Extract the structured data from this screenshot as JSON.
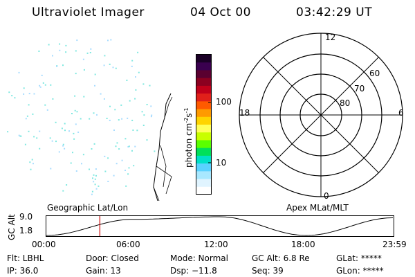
{
  "header": {
    "title": "Ultraviolet Imager",
    "date": "04 Oct 00",
    "time": "03:42:29 UT"
  },
  "colorbar": {
    "label": "photon cm⁻²s⁻¹",
    "label_main": "photon cm",
    "label_exp1": "-2",
    "label_mid": "s",
    "label_exp2": "-1",
    "ticks": [
      "100",
      "10"
    ],
    "colors": [
      "#1a0026",
      "#3a004f",
      "#5a0030",
      "#8b0020",
      "#c0001a",
      "#e0201a",
      "#ff5a00",
      "#ff9a00",
      "#ffd400",
      "#ffff5a",
      "#c8ff00",
      "#5aff00",
      "#00e05a",
      "#00e0c8",
      "#5ad2ff",
      "#a8e8ff",
      "#e0f4ff",
      "#ffffff"
    ]
  },
  "polar": {
    "mlt_labels": {
      "top": "12",
      "left": "18",
      "right": "6",
      "bottom": "0"
    },
    "lat_labels": [
      "60",
      "70",
      "80"
    ]
  },
  "timeline": {
    "left_label": "Geographic Lat/Lon",
    "right_label": "Apex MLat/MLT",
    "y_axis_label": "GC Alt",
    "y_ticks": [
      "9.0",
      "1.8"
    ],
    "x_ticks": [
      "00:00",
      "06:00",
      "12:00",
      "18:00",
      "23:59"
    ],
    "marker_color": "#cc0000"
  },
  "status": {
    "row1": {
      "flt": "Flt: LBHL",
      "door": "Door: Closed",
      "mode": "Mode: Normal",
      "gc_alt": "GC Alt: 6.8 Re",
      "glat": "GLat: *****"
    },
    "row2": {
      "ip": "IP: 36.0",
      "gain": "Gain: 13",
      "dsp": "Dsp:  −11.8",
      "seq": "Seq: 39",
      "glon": "GLon: *****"
    }
  },
  "chart_data": {
    "type": "line",
    "x": [
      "00:00",
      "06:00",
      "12:00",
      "18:00",
      "23:59"
    ],
    "series": [
      {
        "values": [
          1.8,
          8.0,
          9.0,
          1.8,
          8.6
        ]
      }
    ],
    "xlabel": "",
    "ylabel": "GC Alt",
    "ylim": [
      1.8,
      9.0
    ]
  }
}
